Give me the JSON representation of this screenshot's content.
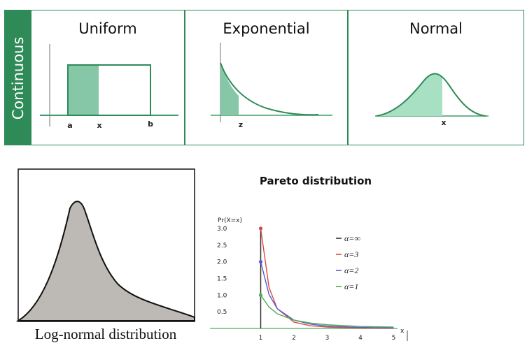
{
  "sidebar": {
    "label": "Continuous"
  },
  "panels": [
    {
      "title": "Uniform",
      "labels": [
        "a",
        "x",
        "b"
      ]
    },
    {
      "title": "Exponential",
      "labels": [
        "z"
      ]
    },
    {
      "title": "Normal",
      "labels": [
        "x"
      ]
    }
  ],
  "lognormal": {
    "caption": "Log-normal distribution"
  },
  "pareto": {
    "title": "Pareto distribution",
    "y_axis_label": "Pr(X=x)",
    "x_axis_label": "x",
    "legend": [
      {
        "label": "α=∞",
        "color": "#333333"
      },
      {
        "label": "α=3",
        "color": "#d94a4a"
      },
      {
        "label": "α=2",
        "color": "#5a5acf"
      },
      {
        "label": "α=1",
        "color": "#4caf50"
      }
    ]
  },
  "chart_data": {
    "type": "line",
    "title": "Pareto distribution",
    "xlabel": "x",
    "ylabel": "Pr(X=x)",
    "xlim": [
      0,
      5
    ],
    "ylim": [
      0,
      3.0
    ],
    "x_ticks": [
      "1",
      "2",
      "3",
      "4",
      "5"
    ],
    "y_ticks": [
      "0.5",
      "1.0",
      "1.5",
      "2.0",
      "2.5",
      "3.0"
    ],
    "series": [
      {
        "name": "α=∞",
        "x": [
          1,
          1
        ],
        "y": [
          0,
          3.0
        ]
      },
      {
        "name": "α=3",
        "x": [
          1,
          1.25,
          1.5,
          2,
          2.5,
          3,
          4,
          5
        ],
        "y": [
          3.0,
          1.23,
          0.59,
          0.19,
          0.08,
          0.04,
          0.01,
          0.005
        ]
      },
      {
        "name": "α=2",
        "x": [
          1,
          1.25,
          1.5,
          2,
          2.5,
          3,
          4,
          5
        ],
        "y": [
          2.0,
          1.02,
          0.59,
          0.25,
          0.13,
          0.07,
          0.03,
          0.016
        ]
      },
      {
        "name": "α=1",
        "x": [
          1,
          1.25,
          1.5,
          2,
          2.5,
          3,
          4,
          5
        ],
        "y": [
          1.0,
          0.64,
          0.44,
          0.25,
          0.16,
          0.11,
          0.06,
          0.04
        ]
      }
    ],
    "legend_position": "right"
  }
}
